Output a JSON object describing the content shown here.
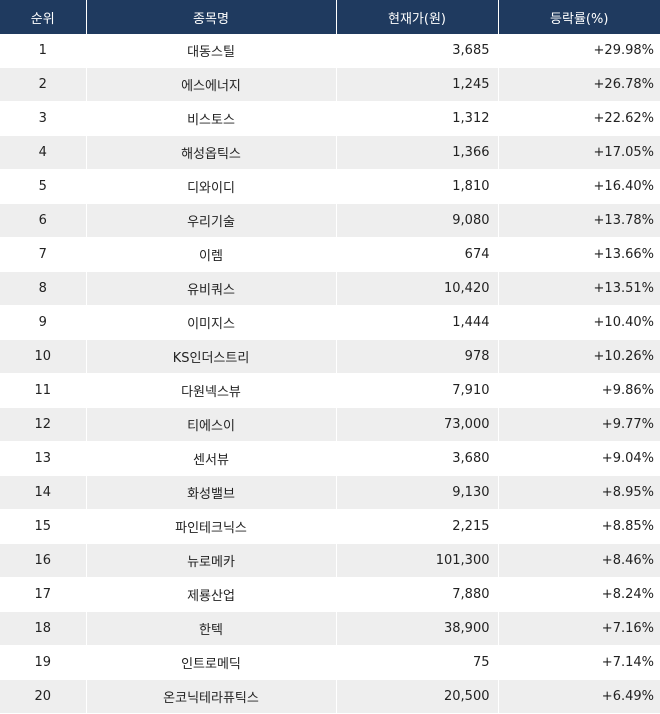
{
  "header": {
    "rank": "순위",
    "name": "종목명",
    "price": "현재가(원)",
    "rate": "등락률(%)"
  },
  "rows": [
    {
      "rank": "1",
      "name": "대동스틸",
      "price": "3,685",
      "rate": "+29.98%"
    },
    {
      "rank": "2",
      "name": "에스에너지",
      "price": "1,245",
      "rate": "+26.78%"
    },
    {
      "rank": "3",
      "name": "비스토스",
      "price": "1,312",
      "rate": "+22.62%"
    },
    {
      "rank": "4",
      "name": "해성옵틱스",
      "price": "1,366",
      "rate": "+17.05%"
    },
    {
      "rank": "5",
      "name": "디와이디",
      "price": "1,810",
      "rate": "+16.40%"
    },
    {
      "rank": "6",
      "name": "우리기술",
      "price": "9,080",
      "rate": "+13.78%"
    },
    {
      "rank": "7",
      "name": "이렘",
      "price": "674",
      "rate": "+13.66%"
    },
    {
      "rank": "8",
      "name": "유비쿼스",
      "price": "10,420",
      "rate": "+13.51%"
    },
    {
      "rank": "9",
      "name": "이미지스",
      "price": "1,444",
      "rate": "+10.40%"
    },
    {
      "rank": "10",
      "name": "KS인더스트리",
      "price": "978",
      "rate": "+10.26%"
    },
    {
      "rank": "11",
      "name": "다원넥스뷰",
      "price": "7,910",
      "rate": "+9.86%"
    },
    {
      "rank": "12",
      "name": "티에스이",
      "price": "73,000",
      "rate": "+9.77%"
    },
    {
      "rank": "13",
      "name": "센서뷰",
      "price": "3,680",
      "rate": "+9.04%"
    },
    {
      "rank": "14",
      "name": "화성밸브",
      "price": "9,130",
      "rate": "+8.95%"
    },
    {
      "rank": "15",
      "name": "파인테크닉스",
      "price": "2,215",
      "rate": "+8.85%"
    },
    {
      "rank": "16",
      "name": "뉴로메카",
      "price": "101,300",
      "rate": "+8.46%"
    },
    {
      "rank": "17",
      "name": "제룡산업",
      "price": "7,880",
      "rate": "+8.24%"
    },
    {
      "rank": "18",
      "name": "한텍",
      "price": "38,900",
      "rate": "+7.16%"
    },
    {
      "rank": "19",
      "name": "인트로메딕",
      "price": "75",
      "rate": "+7.14%"
    },
    {
      "rank": "20",
      "name": "온코닉테라퓨틱스",
      "price": "20,500",
      "rate": "+6.49%"
    }
  ],
  "colors": {
    "header_bg": "#1f3a5f",
    "stripe": "#eeeeee"
  }
}
